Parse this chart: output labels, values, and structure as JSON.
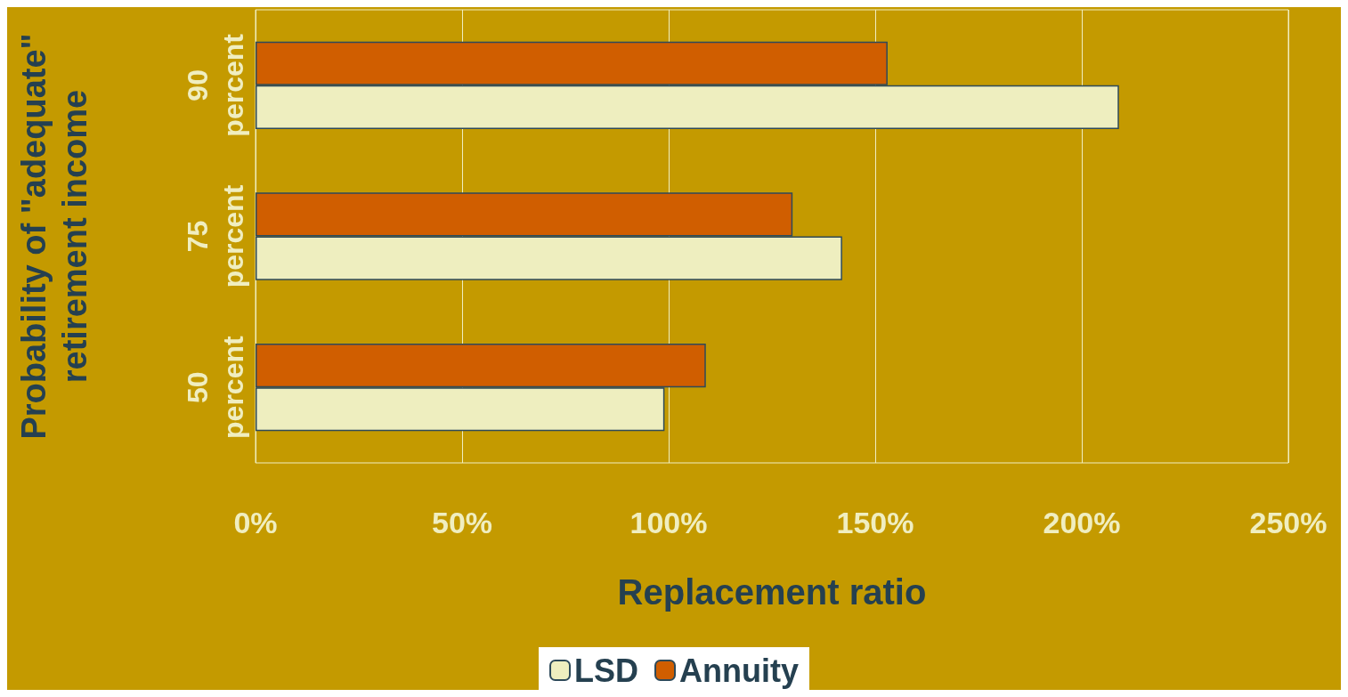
{
  "chart_data": {
    "type": "bar",
    "orientation": "horizontal",
    "xlabel": "Replacement ratio",
    "ylabel": "Probability of \"adequate\" retirement income",
    "categories": [
      "90 percent",
      "75 percent",
      "50 percent"
    ],
    "series": [
      {
        "name": "LSD",
        "color": "#eeeebf",
        "values": [
          209,
          142,
          99
        ]
      },
      {
        "name": "Annuity",
        "color": "#d05e00",
        "values": [
          153,
          130,
          109
        ]
      }
    ],
    "xlim": [
      0,
      250
    ],
    "xticks": [
      {
        "value": 0,
        "label": "0%"
      },
      {
        "value": 50,
        "label": "50%"
      },
      {
        "value": 100,
        "label": "100%"
      },
      {
        "value": 150,
        "label": "150%"
      },
      {
        "value": 200,
        "label": "200%"
      },
      {
        "value": 250,
        "label": "250%"
      }
    ],
    "grid": "x",
    "legend": "bottom"
  }
}
